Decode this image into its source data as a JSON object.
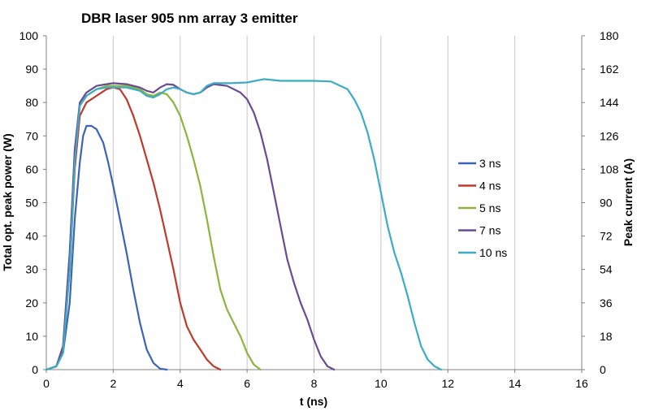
{
  "chart_data": {
    "type": "line",
    "title": "DBR laser 905 nm array 3 emitter",
    "xlabel": "t (ns)",
    "ylabel": "Total opt. peak power (W)",
    "y2label": "Peak current (A)",
    "xlim": [
      0,
      16
    ],
    "ylim": [
      0,
      100
    ],
    "y2lim": [
      0,
      180
    ],
    "x_ticks": [
      "0",
      "2",
      "4",
      "6",
      "8",
      "10",
      "12",
      "14",
      "16"
    ],
    "y_ticks": [
      "0",
      "10",
      "20",
      "30",
      "40",
      "50",
      "60",
      "70",
      "80",
      "90",
      "100"
    ],
    "y2_ticks": [
      "0",
      "18",
      "36",
      "54",
      "72",
      "90",
      "108",
      "126",
      "144",
      "162",
      "180"
    ],
    "grid": "vertical",
    "legend_position": "right",
    "series": [
      {
        "name": "3 ns",
        "color": "#3a64b8",
        "points": [
          [
            0,
            0
          ],
          [
            0.3,
            1
          ],
          [
            0.5,
            5
          ],
          [
            0.7,
            20
          ],
          [
            0.85,
            45
          ],
          [
            1.0,
            62
          ],
          [
            1.1,
            70
          ],
          [
            1.2,
            73
          ],
          [
            1.35,
            73
          ],
          [
            1.5,
            72
          ],
          [
            1.7,
            68
          ],
          [
            1.85,
            62
          ],
          [
            2.0,
            55
          ],
          [
            2.2,
            45
          ],
          [
            2.4,
            35
          ],
          [
            2.6,
            24
          ],
          [
            2.8,
            14
          ],
          [
            3.0,
            6
          ],
          [
            3.2,
            2
          ],
          [
            3.4,
            0.3
          ],
          [
            3.6,
            0
          ]
        ]
      },
      {
        "name": "4 ns",
        "color": "#c0392b",
        "points": [
          [
            0,
            0
          ],
          [
            0.3,
            1
          ],
          [
            0.5,
            6
          ],
          [
            0.7,
            30
          ],
          [
            0.85,
            60
          ],
          [
            1.0,
            76
          ],
          [
            1.2,
            80
          ],
          [
            1.5,
            82
          ],
          [
            1.8,
            84
          ],
          [
            2.0,
            84.5
          ],
          [
            2.2,
            84
          ],
          [
            2.4,
            81
          ],
          [
            2.6,
            76
          ],
          [
            2.8,
            70
          ],
          [
            3.0,
            63
          ],
          [
            3.2,
            56
          ],
          [
            3.4,
            48
          ],
          [
            3.6,
            39
          ],
          [
            3.8,
            30
          ],
          [
            4.0,
            20
          ],
          [
            4.2,
            13
          ],
          [
            4.4,
            9
          ],
          [
            4.6,
            6
          ],
          [
            4.8,
            3
          ],
          [
            5.0,
            1
          ],
          [
            5.2,
            0
          ]
        ]
      },
      {
        "name": "5 ns",
        "color": "#8db43e",
        "points": [
          [
            0,
            0
          ],
          [
            0.3,
            1
          ],
          [
            0.5,
            7
          ],
          [
            0.7,
            35
          ],
          [
            0.85,
            65
          ],
          [
            1.0,
            79
          ],
          [
            1.2,
            82
          ],
          [
            1.5,
            84
          ],
          [
            1.8,
            85
          ],
          [
            2.0,
            85
          ],
          [
            2.4,
            85
          ],
          [
            2.8,
            84
          ],
          [
            3.0,
            82.5
          ],
          [
            3.2,
            82
          ],
          [
            3.4,
            83
          ],
          [
            3.6,
            82.5
          ],
          [
            3.8,
            80
          ],
          [
            4.0,
            76
          ],
          [
            4.2,
            70
          ],
          [
            4.4,
            63
          ],
          [
            4.6,
            55
          ],
          [
            4.8,
            45
          ],
          [
            5.0,
            34
          ],
          [
            5.2,
            24
          ],
          [
            5.4,
            18
          ],
          [
            5.6,
            14
          ],
          [
            5.8,
            10
          ],
          [
            6.0,
            5
          ],
          [
            6.2,
            1.5
          ],
          [
            6.4,
            0
          ]
        ]
      },
      {
        "name": "7 ns",
        "color": "#6b4a94",
        "points": [
          [
            0,
            0
          ],
          [
            0.3,
            1
          ],
          [
            0.5,
            7
          ],
          [
            0.7,
            35
          ],
          [
            0.85,
            66
          ],
          [
            1.0,
            80
          ],
          [
            1.2,
            83
          ],
          [
            1.5,
            85
          ],
          [
            1.8,
            85.5
          ],
          [
            2.0,
            85.8
          ],
          [
            2.4,
            85.5
          ],
          [
            2.8,
            84.5
          ],
          [
            3.0,
            83.5
          ],
          [
            3.2,
            83
          ],
          [
            3.4,
            84.5
          ],
          [
            3.6,
            85.5
          ],
          [
            3.8,
            85.3
          ],
          [
            4.0,
            84
          ],
          [
            4.2,
            83
          ],
          [
            4.4,
            82.5
          ],
          [
            4.6,
            83
          ],
          [
            4.8,
            84.5
          ],
          [
            5.0,
            85.5
          ],
          [
            5.4,
            85
          ],
          [
            5.8,
            83
          ],
          [
            6.0,
            81
          ],
          [
            6.2,
            77
          ],
          [
            6.4,
            71
          ],
          [
            6.6,
            63
          ],
          [
            6.8,
            53
          ],
          [
            7.0,
            43
          ],
          [
            7.2,
            33
          ],
          [
            7.4,
            26
          ],
          [
            7.6,
            20
          ],
          [
            7.8,
            15
          ],
          [
            8.0,
            9
          ],
          [
            8.2,
            4
          ],
          [
            8.4,
            1
          ],
          [
            8.6,
            0
          ]
        ]
      },
      {
        "name": "10 ns",
        "color": "#3bacc4",
        "points": [
          [
            0,
            0
          ],
          [
            0.3,
            1
          ],
          [
            0.5,
            5
          ],
          [
            0.7,
            30
          ],
          [
            0.85,
            62
          ],
          [
            1.0,
            79
          ],
          [
            1.2,
            82
          ],
          [
            1.5,
            84
          ],
          [
            1.8,
            84.5
          ],
          [
            2.0,
            84.5
          ],
          [
            2.4,
            84.5
          ],
          [
            2.8,
            83.5
          ],
          [
            3.0,
            82
          ],
          [
            3.2,
            81.5
          ],
          [
            3.4,
            82.5
          ],
          [
            3.6,
            84
          ],
          [
            3.8,
            84.5
          ],
          [
            4.0,
            84
          ],
          [
            4.2,
            83
          ],
          [
            4.4,
            82.5
          ],
          [
            4.6,
            83
          ],
          [
            4.8,
            85
          ],
          [
            5.0,
            85.8
          ],
          [
            5.5,
            85.8
          ],
          [
            6.0,
            86
          ],
          [
            6.5,
            87
          ],
          [
            7.0,
            86.5
          ],
          [
            7.5,
            86.5
          ],
          [
            8.0,
            86.5
          ],
          [
            8.5,
            86.3
          ],
          [
            9.0,
            84
          ],
          [
            9.2,
            81
          ],
          [
            9.4,
            77
          ],
          [
            9.6,
            71
          ],
          [
            9.8,
            63
          ],
          [
            10.0,
            53
          ],
          [
            10.2,
            43
          ],
          [
            10.4,
            35
          ],
          [
            10.6,
            29
          ],
          [
            10.8,
            22
          ],
          [
            11.0,
            14
          ],
          [
            11.2,
            7
          ],
          [
            11.4,
            3
          ],
          [
            11.6,
            1
          ],
          [
            11.8,
            0
          ]
        ]
      }
    ]
  }
}
